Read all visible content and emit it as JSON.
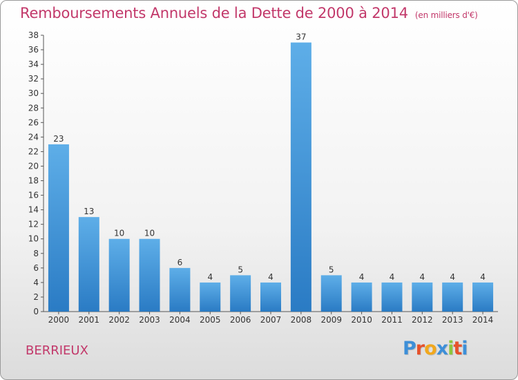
{
  "header": {
    "title": "Remboursements Annuels de la Dette de 2000 à 2014",
    "unit": "(en milliers d'€)"
  },
  "footer": {
    "commune": "BERRIEUX",
    "logo": "Proxiti",
    "logo_colors": [
      "#3d8fd8",
      "#e6522c",
      "#f1a81d",
      "#3d8fd8",
      "#8cc63e",
      "#e6522c",
      "#3d8fd8"
    ]
  },
  "chart_data": {
    "type": "bar",
    "title": "Remboursements Annuels de la Dette de 2000 à 2014",
    "subtitle": "(en milliers d'€)",
    "xlabel": "",
    "ylabel": "",
    "categories": [
      "2000",
      "2001",
      "2002",
      "2003",
      "2004",
      "2005",
      "2006",
      "2007",
      "2008",
      "2009",
      "2010",
      "2011",
      "2012",
      "2013",
      "2014"
    ],
    "values": [
      23,
      13,
      10,
      10,
      6,
      4,
      5,
      4,
      37,
      5,
      4,
      4,
      4,
      4,
      4
    ],
    "ylim": [
      0,
      38
    ],
    "yticks": [
      0,
      2,
      4,
      6,
      8,
      10,
      12,
      14,
      16,
      18,
      20,
      22,
      24,
      26,
      28,
      30,
      32,
      34,
      36,
      38
    ],
    "grid": false,
    "legend": "none",
    "bar_color_top": "#5eaee8",
    "bar_color_bottom": "#2a7bc4"
  }
}
